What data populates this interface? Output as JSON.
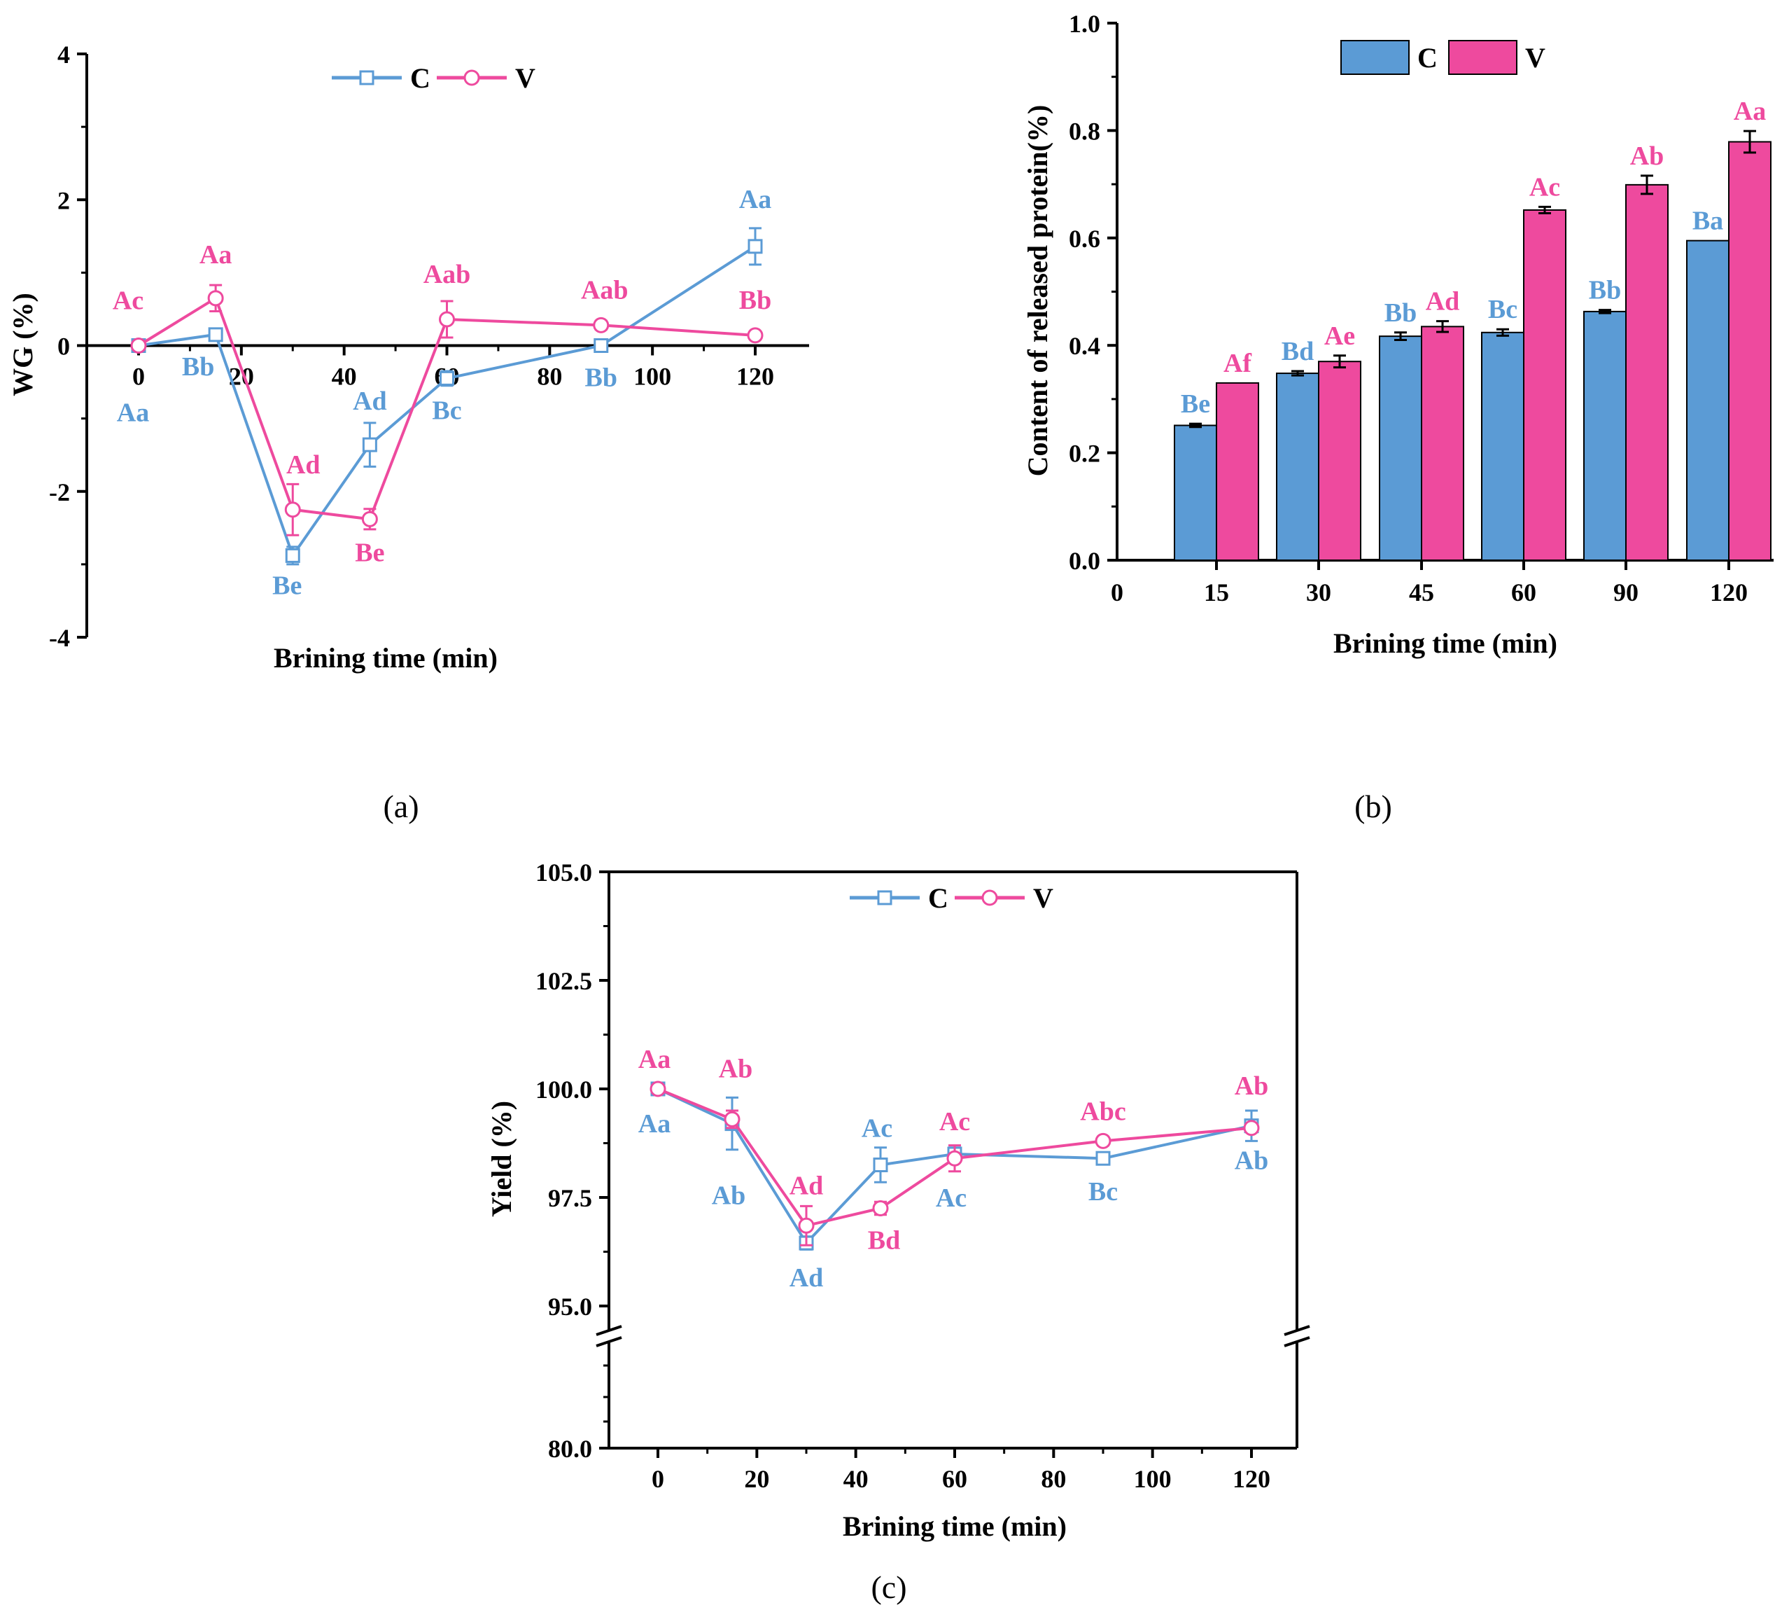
{
  "colors": {
    "C": "#5b9bd5",
    "V": "#ee4a9e",
    "axis": "#000000"
  },
  "chart_data": [
    {
      "id": "a",
      "type": "line",
      "panel_label": "(a)",
      "xlabel": "Brining time (min)",
      "ylabel": "WG (%)",
      "xlim": [
        -10,
        130
      ],
      "ylim": [
        -4,
        4
      ],
      "xticks": [
        "0",
        "20",
        "40",
        "60",
        "80",
        "100",
        "120"
      ],
      "yticks": [
        "4",
        "2",
        "0",
        "-2",
        "-4"
      ],
      "legend": [
        "C",
        "V"
      ],
      "series": [
        {
          "name": "C",
          "x": [
            0,
            15,
            30,
            45,
            60,
            90,
            120
          ],
          "y": [
            0,
            0.15,
            -2.88,
            -1.36,
            -0.45,
            0,
            1.36
          ],
          "err": [
            0,
            0.05,
            0.12,
            0.3,
            0.1,
            0,
            0.25
          ],
          "labels": [
            "Aa",
            "Bb",
            "Be",
            "Ad",
            "Bc",
            "Bb",
            "Aa"
          ]
        },
        {
          "name": "V",
          "x": [
            0,
            15,
            30,
            45,
            60,
            90,
            120
          ],
          "y": [
            0,
            0.65,
            -2.25,
            -2.38,
            0.36,
            0.28,
            0.14
          ],
          "err": [
            0,
            0.18,
            0.35,
            0.14,
            0.25,
            0.06,
            0.05
          ],
          "labels": [
            "Ac",
            "Aa",
            "Ad",
            "Be",
            "Aab",
            "Aab",
            "Bb"
          ]
        }
      ]
    },
    {
      "id": "b",
      "type": "bar",
      "panel_label": "(b)",
      "xlabel": "Brining time (min)",
      "ylabel": "Content of released protein(%)",
      "ylim": [
        0,
        1.0
      ],
      "yticks": [
        "1.0",
        "0.8",
        "0.6",
        "0.4",
        "0.2",
        "0.0"
      ],
      "x_origin_label": "0",
      "categories": [
        "15",
        "30",
        "45",
        "60",
        "90",
        "120"
      ],
      "legend": [
        "C",
        "V"
      ],
      "series": [
        {
          "name": "C",
          "values": [
            0.251,
            0.348,
            0.417,
            0.424,
            0.463,
            0.595
          ],
          "err": [
            0.003,
            0.004,
            0.007,
            0.006,
            0.003,
            0
          ],
          "labels": [
            "Be",
            "Bd",
            "Bb",
            "Bc",
            "Bb",
            "Ba"
          ]
        },
        {
          "name": "V",
          "values": [
            0.33,
            0.37,
            0.435,
            0.652,
            0.699,
            0.779
          ],
          "err": [
            0,
            0.011,
            0.01,
            0.006,
            0.017,
            0.02
          ],
          "labels": [
            "Af",
            "Ae",
            "Ad",
            "Ac",
            "Ab",
            "Aa"
          ]
        }
      ]
    },
    {
      "id": "c",
      "type": "line",
      "panel_label": "(c)",
      "xlabel": "Brining time (min)",
      "ylabel": "Yield (%)",
      "xlim": [
        -10,
        130
      ],
      "ylim_upper": [
        94.5,
        105
      ],
      "ylim_lower": [
        80,
        81
      ],
      "axis_break": true,
      "xticks": [
        "0",
        "20",
        "40",
        "60",
        "80",
        "100",
        "120"
      ],
      "yticks": [
        "105.0",
        "102.5",
        "100.0",
        "97.5",
        "95.0",
        "80.0"
      ],
      "legend": [
        "C",
        "V"
      ],
      "series": [
        {
          "name": "C",
          "x": [
            0,
            15,
            30,
            45,
            60,
            90,
            120
          ],
          "y": [
            100,
            99.2,
            96.45,
            98.25,
            98.5,
            98.4,
            99.15
          ],
          "err": [
            0,
            0.6,
            0.15,
            0.4,
            0.15,
            0.1,
            0.35
          ],
          "labels": [
            "Aa",
            "Ab",
            "Ad",
            "Ac",
            "Ac",
            "Bc",
            "Ab"
          ]
        },
        {
          "name": "V",
          "x": [
            0,
            15,
            30,
            45,
            60,
            90,
            120
          ],
          "y": [
            100,
            99.3,
            96.85,
            97.25,
            98.4,
            98.8,
            99.1
          ],
          "err": [
            0,
            0.2,
            0.45,
            0.15,
            0.3,
            0.1,
            0.1
          ],
          "labels": [
            "Aa",
            "Ab",
            "Ad",
            "Bd",
            "Ac",
            "Abc",
            "Ab"
          ]
        }
      ]
    }
  ]
}
